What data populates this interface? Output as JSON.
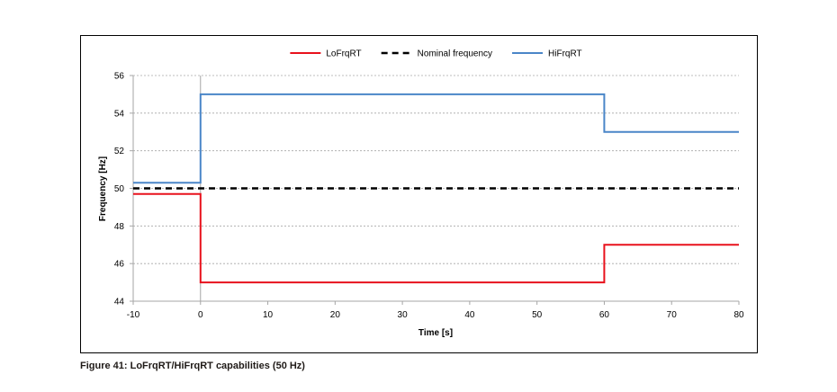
{
  "figure_caption": "Figure 41: LoFrqRT/HiFrqRT capabilities (50 Hz)",
  "chart_data": {
    "type": "line",
    "title": "",
    "xlabel": "Time [s]",
    "ylabel": "Frequency [Hz]",
    "xlim": [
      -10,
      80
    ],
    "ylim": [
      44,
      56
    ],
    "x_ticks": [
      -10,
      0,
      10,
      20,
      30,
      40,
      50,
      60,
      70,
      80
    ],
    "y_ticks": [
      44,
      46,
      48,
      50,
      52,
      54,
      56
    ],
    "grid": "horizontal dashed",
    "legend_position": "top",
    "step": true,
    "series": [
      {
        "name": "LoFrqRT",
        "color": "#e8111c",
        "style": "solid",
        "x": [
          -10,
          0,
          0,
          60,
          60,
          80
        ],
        "y": [
          49.7,
          49.7,
          45,
          45,
          47,
          47
        ]
      },
      {
        "name": "Nominal frequency",
        "color": "#000000",
        "style": "dashed",
        "x": [
          -10,
          80
        ],
        "y": [
          50,
          50
        ]
      },
      {
        "name": "HiFrqRT",
        "color": "#4a86c8",
        "style": "solid",
        "x": [
          -10,
          0,
          0,
          60,
          60,
          80
        ],
        "y": [
          50.3,
          50.3,
          55,
          55,
          53,
          53
        ]
      }
    ]
  }
}
